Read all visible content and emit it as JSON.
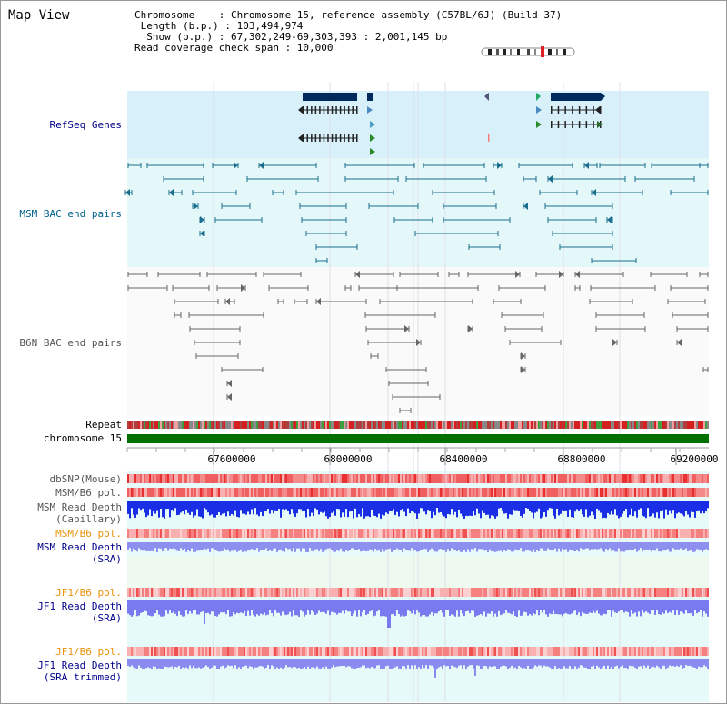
{
  "panel": {
    "title": "Map View"
  },
  "info": {
    "line1": "Chromosome    : Chromosome 15, reference assembly (C57BL/6J) (Build 37)",
    "line2": " Length (b.p.) : 103,494,974",
    "line3": "  Show (b.p.) : 67,302,249-69,303,393 : 2,001,145 bp",
    "line4": "Read coverage check span : 10,000"
  },
  "tracks": {
    "refseq": "RefSeq Genes",
    "msm_bac": "MSM BAC end pairs",
    "b6n_bac": "B6N BAC end pairs",
    "repeat": "Repeat",
    "chromosome": "chromosome 15",
    "dbsnp": "dbSNP(Mouse)",
    "msm_b6_pol_1": "MSM/B6 pol.",
    "msm_read_depth_cap_1": "MSM Read Depth",
    "msm_read_depth_cap_2": "(Capillary)",
    "msm_b6_pol_2": "MSM/B6 pol.",
    "msm_read_depth_sra_1": "MSM Read Depth",
    "msm_read_depth_sra_2": "(SRA)",
    "jf1_b6_pol_1": "JF1/B6 pol.",
    "jf1_read_depth_sra_1": "JF1 Read Depth",
    "jf1_read_depth_sra_2": "(SRA)",
    "jf1_b6_pol_2": "JF1/B6 pol.",
    "jf1_read_depth_trim_1": "JF1 Read Depth",
    "jf1_read_depth_trim_2": "(SRA trimmed)"
  },
  "axis": {
    "ticks": [
      "67600000",
      "68000000",
      "68400000",
      "68800000",
      "69200000"
    ]
  },
  "colors": {
    "refseq_bg": "#d8f0fa",
    "msm_bg": "#e4f8fa",
    "b6n_bg": "#fafafa",
    "chrom_bar": "#007000",
    "gene_dark": "#002a5c",
    "msm_feature": "#1a6e8e",
    "b6n_feature": "#666666",
    "depth_blue": "#1a2ee6",
    "depth_light": "#8f8ff0",
    "pol_red": "#f06060"
  }
}
